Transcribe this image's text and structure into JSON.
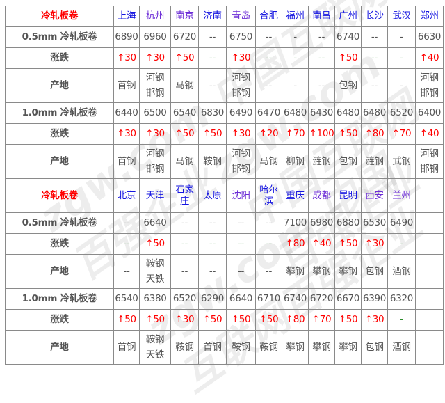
{
  "watermark": "zgw.com 中国互联网百强企业",
  "colors": {
    "header_label": "#ff0000",
    "city_link": "#1515e0",
    "up": "#ff0000",
    "flat": "#2a8a2a",
    "text": "#555555"
  },
  "sections": [
    {
      "corner": "冷轧板卷",
      "cities": [
        "上海",
        "杭州",
        "南京",
        "济南",
        "青岛",
        "合肥",
        "福州",
        "南昌",
        "广州",
        "长沙",
        "武汉",
        "郑州"
      ],
      "rows": [
        {
          "label": "0.5mm 冷轧板卷",
          "type": "price",
          "values": [
            "6890",
            "6960",
            "6720",
            "--",
            "6750",
            "--",
            "-",
            "--",
            "6740",
            "--",
            "-",
            "6630"
          ]
        },
        {
          "label": "涨跌",
          "type": "change",
          "values": [
            "↑30",
            "↑30",
            "↑50",
            "--",
            "↑30",
            "--",
            "-",
            "--",
            "↑50",
            "--",
            "-",
            "↑40"
          ]
        },
        {
          "label": "产地",
          "type": "origin",
          "values": [
            "首钢",
            "河钢邯钢",
            "马钢",
            "--",
            "河钢邯钢",
            "--",
            "-",
            "--",
            "包钢",
            "--",
            "-",
            "河钢邯钢"
          ]
        },
        {
          "label": "1.0mm 冷轧板卷",
          "type": "price",
          "values": [
            "6440",
            "6500",
            "6540",
            "6830",
            "6490",
            "6470",
            "6480",
            "6430",
            "6480",
            "6480",
            "6520",
            "6400"
          ]
        },
        {
          "label": "涨跌",
          "type": "change",
          "values": [
            "↑30",
            "↑30",
            "↑50",
            "↑50",
            "↑30",
            "↑20",
            "↑70",
            "↑100",
            "↑50",
            "↑80",
            "↑70",
            "↑40"
          ]
        },
        {
          "label": "产地",
          "type": "origin",
          "values": [
            "首钢",
            "河钢邯钢",
            "马钢",
            "鞍钢",
            "河钢邯钢",
            "马钢",
            "柳钢",
            "涟钢",
            "包钢",
            "涟钢",
            "武钢",
            "河钢邯钢"
          ]
        }
      ]
    },
    {
      "corner": "冷轧板卷",
      "cities": [
        "北京",
        "天津",
        "石家庄",
        "太原",
        "沈阳",
        "哈尔滨",
        "重庆",
        "成都",
        "昆明",
        "西安",
        "兰州",
        ""
      ],
      "rows": [
        {
          "label": "0.5mm 冷轧板卷",
          "type": "price",
          "values": [
            "--",
            "6640",
            "--",
            "--",
            "--",
            "--",
            "7100",
            "6980",
            "6880",
            "6530",
            "6490",
            ""
          ]
        },
        {
          "label": "涨跌",
          "type": "change",
          "values": [
            "--",
            "↑50",
            "--",
            "--",
            "--",
            "--",
            "↑80",
            "↑40",
            "↑50",
            "↑30",
            "-",
            ""
          ]
        },
        {
          "label": "产地",
          "type": "origin",
          "values": [
            "--",
            "鞍钢天铁",
            "--",
            "--",
            "--",
            "--",
            "攀钢",
            "攀钢",
            "攀钢",
            "包钢",
            "酒钢",
            ""
          ]
        },
        {
          "label": "1.0mm 冷轧板卷",
          "type": "price",
          "values": [
            "6540",
            "6380",
            "6520",
            "6290",
            "6640",
            "6710",
            "6740",
            "6720",
            "6670",
            "6390",
            "6320",
            ""
          ]
        },
        {
          "label": "涨跌",
          "type": "change",
          "values": [
            "↑50",
            "↑50",
            "↑30",
            "↑50",
            "↑50",
            "↑50",
            "↑80",
            "↑70",
            "↑50",
            "↑30",
            "-",
            ""
          ]
        },
        {
          "label": "产地",
          "type": "origin",
          "values": [
            "首钢",
            "鞍钢天铁",
            "鞍钢",
            "首钢",
            "鞍钢",
            "鞍钢",
            "攀钢",
            "攀钢",
            "攀钢",
            "包钢",
            "酒钢",
            ""
          ]
        }
      ]
    }
  ]
}
